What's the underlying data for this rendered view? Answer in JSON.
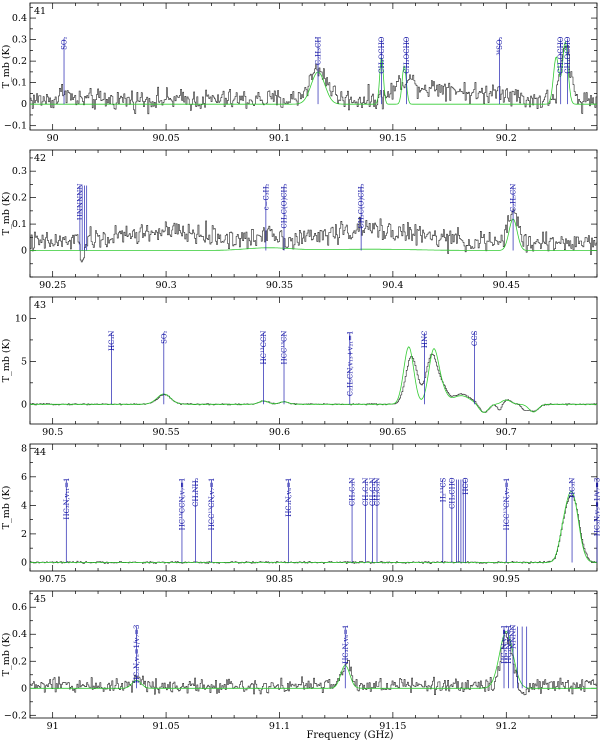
{
  "figure": {
    "xlabel": "Frequency (GHz)",
    "ylabel": "T_mb (K)",
    "colors": {
      "observed": "#222222",
      "model": "#33cc33",
      "line_marker": "#2020b0"
    }
  },
  "chart_data": [
    {
      "type": "line",
      "panel": "41",
      "xlim": [
        89.99,
        90.24
      ],
      "ylim": [
        -0.12,
        0.47
      ],
      "xticks": [
        90,
        90.05,
        90.1,
        90.15,
        90.2
      ],
      "xtick_labels": [
        "90",
        "90.05",
        "90.1",
        "90.15",
        "90.2"
      ],
      "yticks": [
        -0.1,
        0,
        0.1,
        0.2,
        0.3,
        0.4
      ],
      "ytick_labels": [
        "−0.1",
        "0",
        "0.1",
        "0.2",
        "0.3",
        "0.4"
      ],
      "baseline": 0.02,
      "noise": 0.03,
      "obs_peaks": [
        [
          90.005,
          0.05,
          0.0015
        ],
        [
          90.117,
          0.14,
          0.004
        ],
        [
          90.155,
          0.07,
          0.004
        ],
        [
          90.17,
          0.06,
          0.012
        ],
        [
          90.197,
          0.04,
          0.005
        ],
        [
          90.226,
          0.25,
          0.002
        ]
      ],
      "model_peaks": [
        [
          90.117,
          0.15,
          0.003
        ],
        [
          90.145,
          0.22,
          0.0008
        ],
        [
          90.155,
          0.18,
          0.0009
        ],
        [
          90.226,
          0.29,
          0.0012
        ],
        [
          90.222,
          0.22,
          0.0012
        ]
      ],
      "lines": [
        {
          "x": 90.005,
          "label": "SO₂"
        },
        {
          "x": 90.117,
          "label": "C₂H₃CH"
        },
        {
          "x": 90.145,
          "label": "CH₃OCHO"
        },
        {
          "x": 90.156,
          "label": "CH₃OCHO"
        },
        {
          "x": 90.197,
          "label": "³⁴SO₂"
        },
        {
          "x": 90.224,
          "label": "CH₃OCHO"
        },
        {
          "x": 90.227,
          "label": "CH₃OCHO"
        }
      ]
    },
    {
      "type": "line",
      "panel": "42",
      "xlim": [
        90.24,
        90.49
      ],
      "ylim": [
        -0.1,
        0.38
      ],
      "xticks": [
        90.25,
        90.3,
        90.35,
        90.4,
        90.45
      ],
      "xtick_labels": [
        "90.25",
        "90.3",
        "90.35",
        "90.4",
        "90.45"
      ],
      "yticks": [
        0,
        0.1,
        0.2,
        0.3
      ],
      "ytick_labels": [
        "0",
        "0.1",
        "0.2",
        "0.3"
      ],
      "baseline": 0.03,
      "noise": 0.025,
      "obs_peaks": [
        [
          90.263,
          -0.06,
          0.001
        ],
        [
          90.3,
          0.04,
          0.02
        ],
        [
          90.345,
          0.04,
          0.003
        ],
        [
          90.39,
          0.05,
          0.02
        ],
        [
          90.453,
          0.12,
          0.002
        ]
      ],
      "model_peaks": [
        [
          90.453,
          0.12,
          0.0018
        ],
        [
          90.345,
          0.01,
          0.01
        ],
        [
          90.39,
          0.005,
          0.02
        ]
      ],
      "lines": [
        {
          "x": 90.262,
          "label": "HNNNNN"
        },
        {
          "x": 90.263,
          "label": ""
        },
        {
          "x": 90.264,
          "label": ""
        },
        {
          "x": 90.265,
          "label": ""
        },
        {
          "x": 90.344,
          "label": "c−C₃H₂"
        },
        {
          "x": 90.352,
          "label": "CH₃C(O)CH₃"
        },
        {
          "x": 90.386,
          "label": "CH₃C(O)CH₃"
        },
        {
          "x": 90.453,
          "label": "C₂H₅CN"
        }
      ]
    },
    {
      "type": "line",
      "panel": "43",
      "xlim": [
        90.49,
        90.74
      ],
      "ylim": [
        -2.3,
        12.5
      ],
      "xticks": [
        90.5,
        90.55,
        90.6,
        90.65,
        90.7
      ],
      "xtick_labels": [
        "90.5",
        "90.55",
        "90.6",
        "90.65",
        "90.7"
      ],
      "yticks": [
        0,
        5,
        10
      ],
      "ytick_labels": [
        "0",
        "5",
        "10"
      ],
      "baseline": 0,
      "noise": 0.05,
      "obs_peaks": [
        [
          90.549,
          1.1,
          0.003
        ],
        [
          90.593,
          0.4,
          0.002
        ],
        [
          90.602,
          0.3,
          0.002
        ],
        [
          90.658,
          5.6,
          0.0025
        ],
        [
          90.667,
          5.8,
          0.0025
        ],
        [
          90.672,
          1.5,
          0.002
        ],
        [
          90.68,
          1.2,
          0.004
        ],
        [
          90.69,
          -1.0,
          0.002
        ],
        [
          90.697,
          -0.8,
          0.001
        ],
        [
          90.7,
          0.5,
          0.002
        ],
        [
          90.708,
          -0.6,
          0.0015
        ],
        [
          90.712,
          -0.8,
          0.002
        ]
      ],
      "model_peaks": [
        [
          90.549,
          1.2,
          0.003
        ],
        [
          90.593,
          0.4,
          0.002
        ],
        [
          90.602,
          0.3,
          0.002
        ],
        [
          90.657,
          6.7,
          0.0022
        ],
        [
          90.668,
          6.3,
          0.0022
        ],
        [
          90.672,
          1.2,
          0.002
        ],
        [
          90.68,
          1.0,
          0.004
        ],
        [
          90.69,
          -1.0,
          0.002
        ],
        [
          90.7,
          0.5,
          0.002
        ],
        [
          90.712,
          -0.9,
          0.002
        ]
      ],
      "lines": [
        {
          "x": 90.526,
          "label": "HC₃N"
        },
        {
          "x": 90.549,
          "label": "SO₂"
        },
        {
          "x": 90.593,
          "label": "HC¹³CCN"
        },
        {
          "x": 90.602,
          "label": "HCC¹³CN"
        },
        {
          "x": 90.631,
          "label": "C₂H₅CN,v₁₃+v₂₁=1"
        },
        {
          "x": 90.664,
          "label": "HNC"
        },
        {
          "x": 90.686,
          "label": "CCS"
        }
      ]
    },
    {
      "type": "line",
      "panel": "44",
      "xlim": [
        90.74,
        90.99
      ],
      "ylim": [
        -0.6,
        8.3
      ],
      "xticks": [
        90.75,
        90.8,
        90.85,
        90.9,
        90.95
      ],
      "xtick_labels": [
        "90.75",
        "90.8",
        "90.85",
        "90.9",
        "90.95"
      ],
      "yticks": [
        0,
        2,
        4,
        6,
        8
      ],
      "ytick_labels": [
        "0",
        "2",
        "4",
        "6",
        "8"
      ],
      "baseline": 0,
      "noise": 0.04,
      "obs_peaks": [
        [
          90.979,
          4.5,
          0.003
        ],
        [
          90.975,
          1.2,
          0.002
        ]
      ],
      "model_peaks": [
        [
          90.979,
          4.8,
          0.0028
        ],
        [
          90.975,
          1.2,
          0.002
        ]
      ],
      "lines": [
        {
          "x": 90.756,
          "label": "HC₃N,v₁₁=1"
        },
        {
          "x": 90.807,
          "label": "HC¹³CCN,v₇=1"
        },
        {
          "x": 90.813,
          "label": "CH₃NH₂"
        },
        {
          "x": 90.82,
          "label": "HCC¹³CN,v₇=1"
        },
        {
          "x": 90.854,
          "label": "HC₃N,v₆=1"
        },
        {
          "x": 90.882,
          "label": "CH₃C₃N"
        },
        {
          "x": 90.888,
          "label": "CH₃C₃N"
        },
        {
          "x": 90.891,
          "label": "CH₃C₃N"
        },
        {
          "x": 90.893,
          "label": "CH₃C₃N"
        },
        {
          "x": 90.922,
          "label": "H₂¹³CS"
        },
        {
          "x": 90.926,
          "label": "CH₃CHO"
        },
        {
          "x": 90.928,
          "label": ""
        },
        {
          "x": 90.929,
          "label": ""
        },
        {
          "x": 90.93,
          "label": ""
        },
        {
          "x": 90.931,
          "label": ""
        },
        {
          "x": 90.932,
          "label": "HCO"
        },
        {
          "x": 90.95,
          "label": "HCC¹³CN,v₇=1"
        },
        {
          "x": 90.979,
          "label": "HC₃N"
        },
        {
          "x": 90.99,
          "label": "HC₃N,v₅=1/v₇=3"
        }
      ]
    },
    {
      "type": "line",
      "panel": "45",
      "xlim": [
        90.99,
        91.24
      ],
      "ylim": [
        -0.22,
        0.72
      ],
      "xticks": [
        91,
        91.05,
        91.1,
        91.15,
        91.2
      ],
      "xtick_labels": [
        "91",
        "91.05",
        "91.1",
        "91.15",
        "91.2"
      ],
      "yticks": [
        -0.2,
        0,
        0.2,
        0.4,
        0.6
      ],
      "ytick_labels": [
        "−0.2",
        "0",
        "0.2",
        "0.4",
        "0.6"
      ],
      "baseline": 0.02,
      "noise": 0.035,
      "obs_peaks": [
        [
          91.037,
          0.05,
          0.002
        ],
        [
          91.129,
          0.16,
          0.002
        ],
        [
          91.2,
          0.38,
          0.0025
        ],
        [
          91.207,
          -0.1,
          0.0015
        ]
      ],
      "model_peaks": [
        [
          91.037,
          0.06,
          0.002
        ],
        [
          91.129,
          0.17,
          0.002
        ],
        [
          91.2,
          0.42,
          0.003
        ]
      ],
      "lines": [
        {
          "x": 91.037,
          "label": "HC₃N,v₅=1/v₇=3"
        },
        {
          "x": 91.129,
          "label": "HC₃N,v₆=1"
        },
        {
          "x": 91.199,
          "label": "HC₃N,v₇=1"
        },
        {
          "x": 91.201,
          "label": "HC₃N,v₇=1"
        },
        {
          "x": 91.203,
          "label": "NNNN"
        },
        {
          "x": 91.205,
          "label": ""
        },
        {
          "x": 91.207,
          "label": ""
        },
        {
          "x": 91.209,
          "label": ""
        }
      ]
    }
  ]
}
